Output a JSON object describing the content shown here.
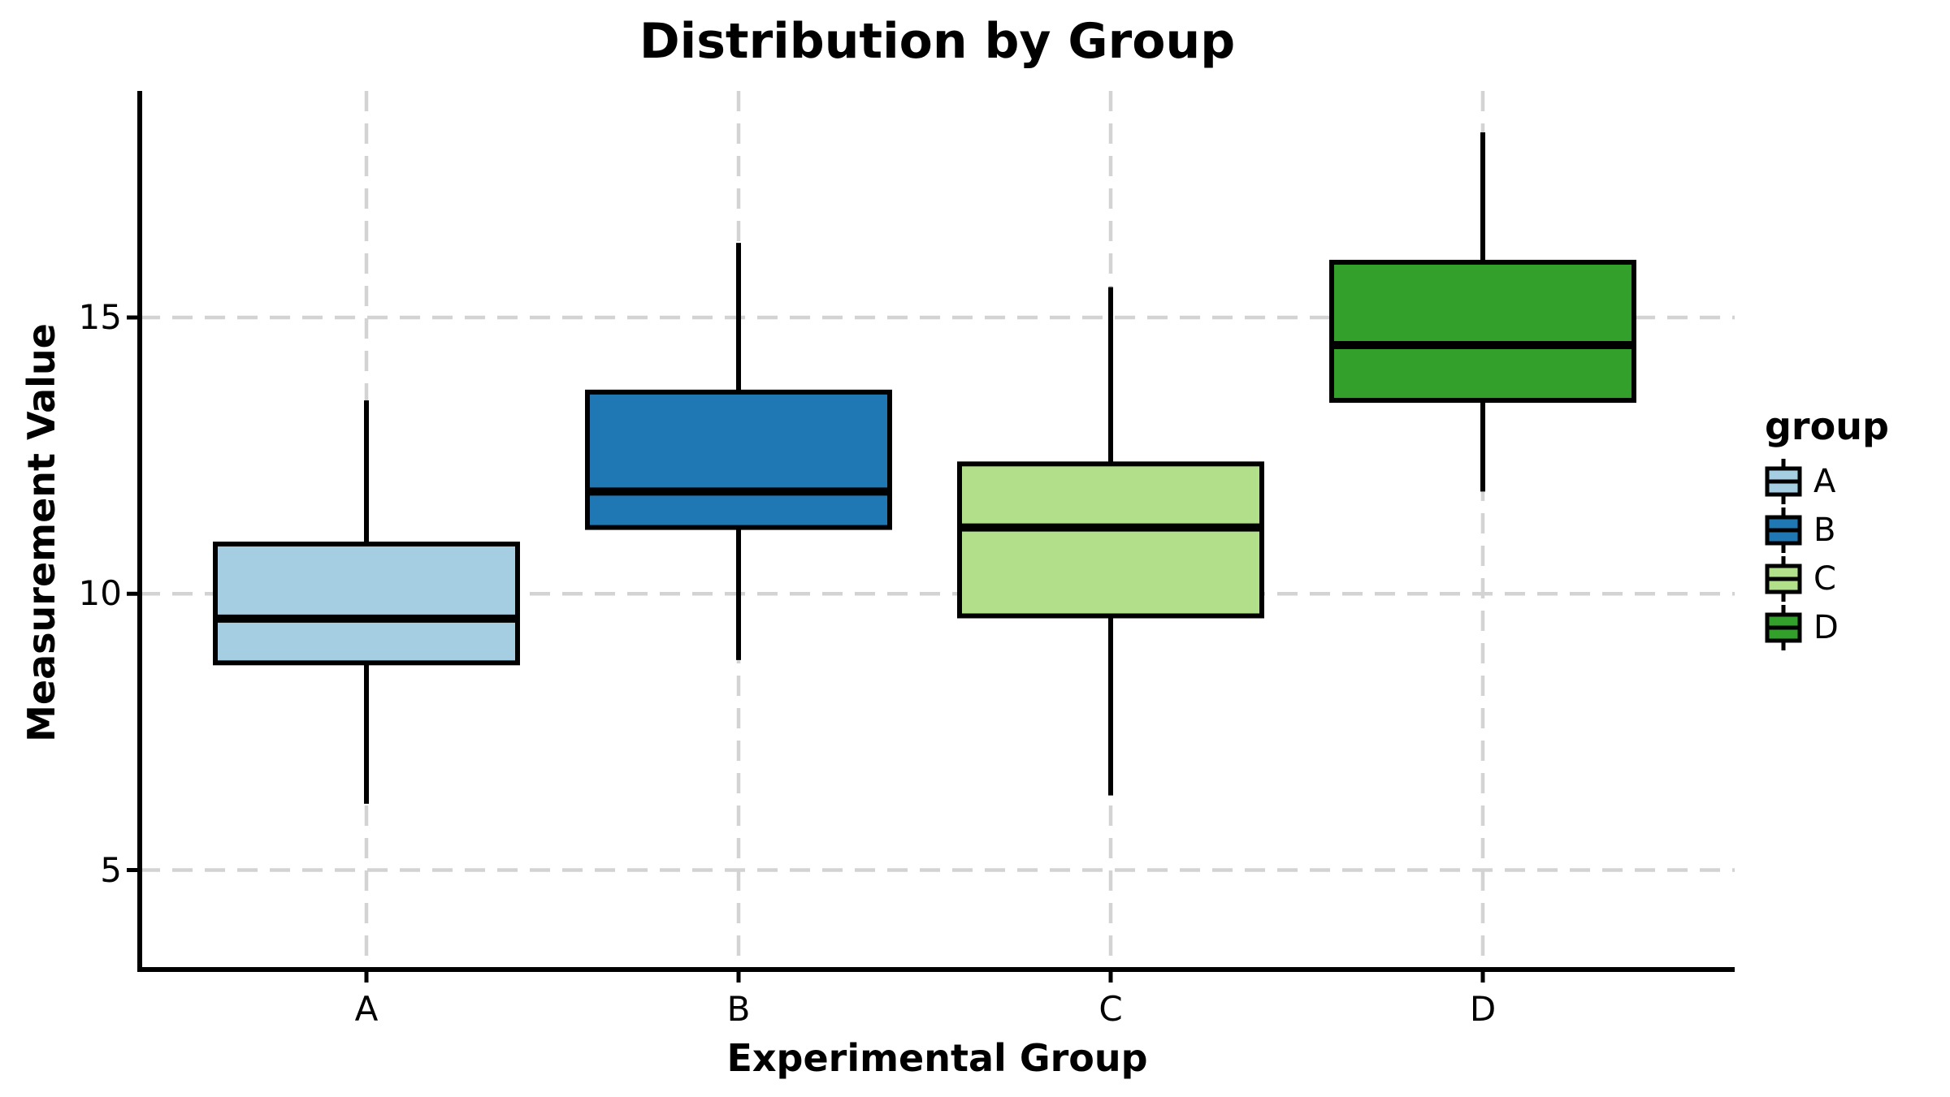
{
  "chart_data": {
    "type": "boxplot",
    "title": "Distribution by Group",
    "xlabel": "Experimental Group",
    "ylabel": "Measurement Value",
    "legend_title": "group",
    "legend_position": "right",
    "categories": [
      "A",
      "B",
      "C",
      "D"
    ],
    "yticks": [
      5,
      10,
      15
    ],
    "ylim": [
      3.2,
      19.1
    ],
    "grid": "dashed",
    "series": [
      {
        "name": "A",
        "color": "#A6CEE3",
        "whisker_low": 6.2,
        "q1": 8.75,
        "median": 9.55,
        "q3": 10.9,
        "whisker_high": 13.5
      },
      {
        "name": "B",
        "color": "#1F78B4",
        "whisker_low": 8.8,
        "q1": 11.2,
        "median": 11.85,
        "q3": 13.65,
        "whisker_high": 16.35
      },
      {
        "name": "C",
        "color": "#B2DF8A",
        "whisker_low": 6.35,
        "q1": 9.6,
        "median": 11.2,
        "q3": 12.35,
        "whisker_high": 15.55
      },
      {
        "name": "D",
        "color": "#33A02C",
        "whisker_low": 11.85,
        "q1": 13.5,
        "median": 14.5,
        "q3": 16.0,
        "whisker_high": 18.35
      }
    ],
    "style": {
      "background": "#FFFFFF",
      "gridline_color": "#D3D3D3",
      "box_border_color": "#000000",
      "median_color": "#000000",
      "whisker_color": "#000000",
      "axis_color": "#000000",
      "text_color": "#000000"
    }
  }
}
